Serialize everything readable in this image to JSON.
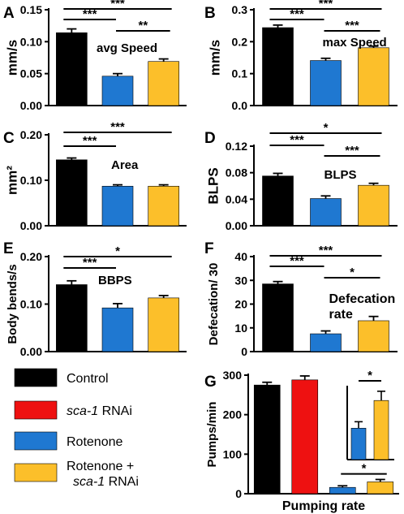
{
  "colors": {
    "Control": "#000000",
    "sca-1 RNAi": "#ee1111",
    "Rotenone": "#1f78d1",
    "Rotenone + sca-1 RNAi": "#fcbf2a",
    "axis": "#000000",
    "error_bar": "#000000"
  },
  "legend": {
    "placement": "bottom-left",
    "items": [
      {
        "label": "Control",
        "color_key": "Control"
      },
      {
        "label_parts": [
          "sca-1",
          " RNAi"
        ],
        "italic_first": true,
        "color_key": "sca-1 RNAi"
      },
      {
        "label": "Rotenone",
        "color_key": "Rotenone"
      },
      {
        "label_parts": [
          "Rotenone +",
          "sca-1",
          " RNAi"
        ],
        "two_line": true,
        "color_key": "Rotenone + sca-1 RNAi"
      }
    ]
  },
  "chart_data": [
    {
      "panel": "A",
      "type": "bar",
      "ylabel": "mm/s",
      "annotation": "avg Speed",
      "categories": [
        "Control",
        "Rotenone",
        "Rotenone + sca-1 RNAi"
      ],
      "values": [
        0.114,
        0.046,
        0.069
      ],
      "errors": [
        0.006,
        0.004,
        0.004
      ],
      "ylim": [
        0,
        0.15
      ],
      "yticks": [
        0.0,
        0.05,
        0.1,
        0.15
      ],
      "ytick_labels": [
        "0.00",
        "0.05",
        "0.10",
        "0.15"
      ],
      "significance": [
        {
          "from": 0,
          "to": 2,
          "label": "***",
          "level": 0
        },
        {
          "from": 0,
          "to": 1,
          "label": "***",
          "level": 1
        },
        {
          "from": 1,
          "to": 2,
          "label": "**",
          "level": 2
        }
      ]
    },
    {
      "panel": "B",
      "type": "bar",
      "ylabel": "mm/s",
      "annotation": "max Speed",
      "categories": [
        "Control",
        "Rotenone",
        "Rotenone + sca-1 RNAi"
      ],
      "values": [
        0.244,
        0.141,
        0.181
      ],
      "errors": [
        0.008,
        0.007,
        0.005
      ],
      "ylim": [
        0,
        0.3
      ],
      "yticks": [
        0.0,
        0.1,
        0.2,
        0.3
      ],
      "ytick_labels": [
        "0.0",
        "0.1",
        "0.2",
        "0.3"
      ],
      "significance": [
        {
          "from": 0,
          "to": 2,
          "label": "***",
          "level": 0
        },
        {
          "from": 0,
          "to": 1,
          "label": "***",
          "level": 1
        },
        {
          "from": 1,
          "to": 2,
          "label": "***",
          "level": 2
        }
      ]
    },
    {
      "panel": "C",
      "type": "bar",
      "ylabel": "mm²",
      "annotation": "Area",
      "categories": [
        "Control",
        "Rotenone",
        "Rotenone + sca-1 RNAi"
      ],
      "values": [
        0.145,
        0.087,
        0.087
      ],
      "errors": [
        0.004,
        0.003,
        0.003
      ],
      "ylim": [
        0,
        0.2
      ],
      "yticks": [
        0.0,
        0.1,
        0.2
      ],
      "ytick_labels": [
        "0.00",
        "0.10",
        "0.20"
      ],
      "significance": [
        {
          "from": 0,
          "to": 2,
          "label": "***",
          "level": 0
        },
        {
          "from": 0,
          "to": 1,
          "label": "***",
          "level": 1
        }
      ]
    },
    {
      "panel": "D",
      "type": "bar",
      "ylabel": "BLPS",
      "annotation": "BLPS",
      "categories": [
        "Control",
        "Rotenone",
        "Rotenone + sca-1 RNAi"
      ],
      "values": [
        0.075,
        0.041,
        0.061
      ],
      "errors": [
        0.004,
        0.004,
        0.003
      ],
      "ylim": [
        0,
        0.12
      ],
      "yticks": [
        0.0,
        0.04,
        0.08,
        0.12
      ],
      "ytick_labels": [
        "0.00",
        "0.04",
        "0.08",
        "0.12"
      ],
      "significance": [
        {
          "from": 0,
          "to": 2,
          "label": "*",
          "level": 0
        },
        {
          "from": 0,
          "to": 1,
          "label": "***",
          "level": 1
        },
        {
          "from": 1,
          "to": 2,
          "label": "***",
          "level": 2
        }
      ]
    },
    {
      "panel": "E",
      "type": "bar",
      "ylabel": "Body bends/s",
      "annotation": "BBPS",
      "categories": [
        "Control",
        "Rotenone",
        "Rotenone + sca-1 RNAi"
      ],
      "values": [
        0.141,
        0.092,
        0.113
      ],
      "errors": [
        0.008,
        0.009,
        0.005
      ],
      "ylim": [
        0,
        0.2
      ],
      "yticks": [
        0.0,
        0.1,
        0.2
      ],
      "ytick_labels": [
        "0.00",
        "0.10",
        "0.20"
      ],
      "significance": [
        {
          "from": 0,
          "to": 2,
          "label": "*",
          "level": 0
        },
        {
          "from": 0,
          "to": 1,
          "label": "***",
          "level": 1
        }
      ]
    },
    {
      "panel": "F",
      "type": "bar",
      "ylabel": "Defecation/ 30",
      "annotation": "Defecation rate",
      "annotation_lines": [
        "Defecation",
        "rate"
      ],
      "categories": [
        "Control",
        "Rotenone",
        "Rotenone + sca-1 RNAi"
      ],
      "values": [
        28.5,
        7.5,
        13.0
      ],
      "errors": [
        1.0,
        1.2,
        1.8
      ],
      "ylim": [
        0,
        40
      ],
      "yticks": [
        0,
        10,
        20,
        30,
        40
      ],
      "ytick_labels": [
        "0",
        "10",
        "20",
        "30",
        "40"
      ],
      "significance": [
        {
          "from": 0,
          "to": 2,
          "label": "***",
          "level": 0
        },
        {
          "from": 0,
          "to": 1,
          "label": "***",
          "level": 1
        },
        {
          "from": 1,
          "to": 2,
          "label": "*",
          "level": 2
        }
      ]
    },
    {
      "panel": "G",
      "type": "bar",
      "ylabel": "Pumps/min",
      "xlabel": "Pumping rate",
      "categories": [
        "Control",
        "sca-1 RNAi",
        "Rotenone",
        "Rotenone + sca-1 RNAi"
      ],
      "values": [
        275,
        288,
        16,
        30
      ],
      "errors": [
        7,
        10,
        4,
        6
      ],
      "ylim": [
        0,
        300
      ],
      "yticks": [
        0,
        100,
        200,
        300
      ],
      "ytick_labels": [
        "0",
        "100",
        "200",
        "300"
      ],
      "significance": [
        {
          "from": 2,
          "to": 3,
          "label": "*",
          "level": 2
        }
      ],
      "inset": {
        "categories": [
          "Rotenone",
          "Rotenone + sca-1 RNAi"
        ],
        "values": [
          17,
          32
        ],
        "errors": [
          3.5,
          5
        ],
        "ylim": [
          0,
          40
        ],
        "significance": [
          {
            "from": 0,
            "to": 1,
            "label": "*"
          }
        ]
      }
    }
  ]
}
